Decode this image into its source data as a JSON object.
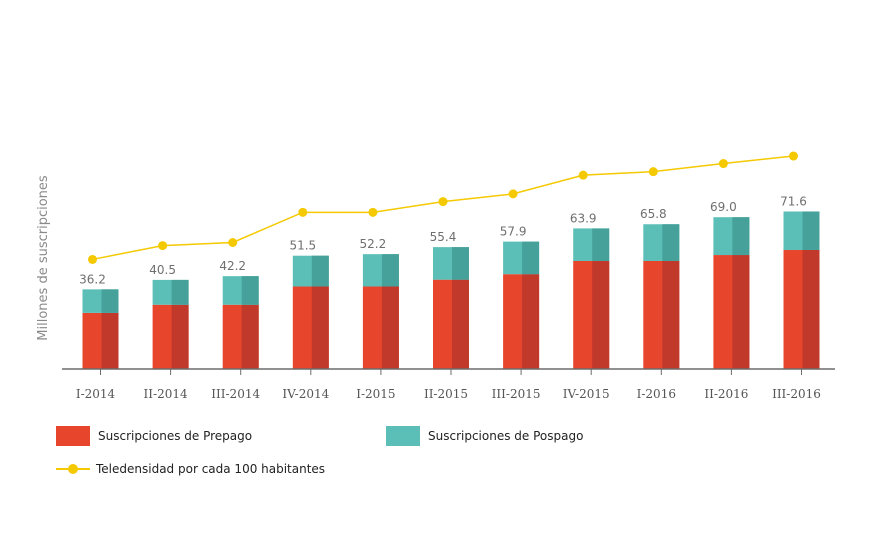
{
  "chart_data": {
    "type": "bar",
    "stacked": true,
    "ylabel": "Millones de suscripciones",
    "xlabel": "",
    "categories": [
      "I-2014",
      "II-2014",
      "III-2014",
      "IV-2014",
      "I-2015",
      "II-2015",
      "III-2015",
      "IV-2015",
      "I-2016",
      "II-2016",
      "III-2016"
    ],
    "ylim": [
      0,
      110
    ],
    "series": [
      {
        "name": "Suscripciones de Prepago",
        "values": [
          25.5,
          29.2,
          29.2,
          37.5,
          37.5,
          40.6,
          43.1,
          49.1,
          49.1,
          51.8,
          54.1
        ],
        "color": "#e8452d",
        "shade": "#c0392b"
      },
      {
        "name": "Suscripciones de Pospago",
        "values": [
          10.7,
          11.3,
          13.0,
          14.0,
          14.7,
          14.8,
          14.8,
          14.8,
          16.7,
          17.2,
          17.5
        ],
        "color": "#5bbfb8",
        "shade": "#47a19b"
      }
    ],
    "totals": [
      36.2,
      40.5,
      42.2,
      51.5,
      52.2,
      55.4,
      57.9,
      63.9,
      65.8,
      69.0,
      71.6
    ],
    "totals_labels": [
      "36.2",
      "40.5",
      "42.2",
      "51.5",
      "52.2",
      "55.4",
      "57.9",
      "63.9",
      "65.8",
      "69.0",
      "71.6"
    ],
    "line": {
      "name": "Teledensidad por cada 100 habitantes",
      "values": [
        49.8,
        56.1,
        57.5,
        71.2,
        71.2,
        76.1,
        79.6,
        88.1,
        89.7,
        93.4,
        96.8
      ],
      "color": "#f5c900"
    }
  }
}
